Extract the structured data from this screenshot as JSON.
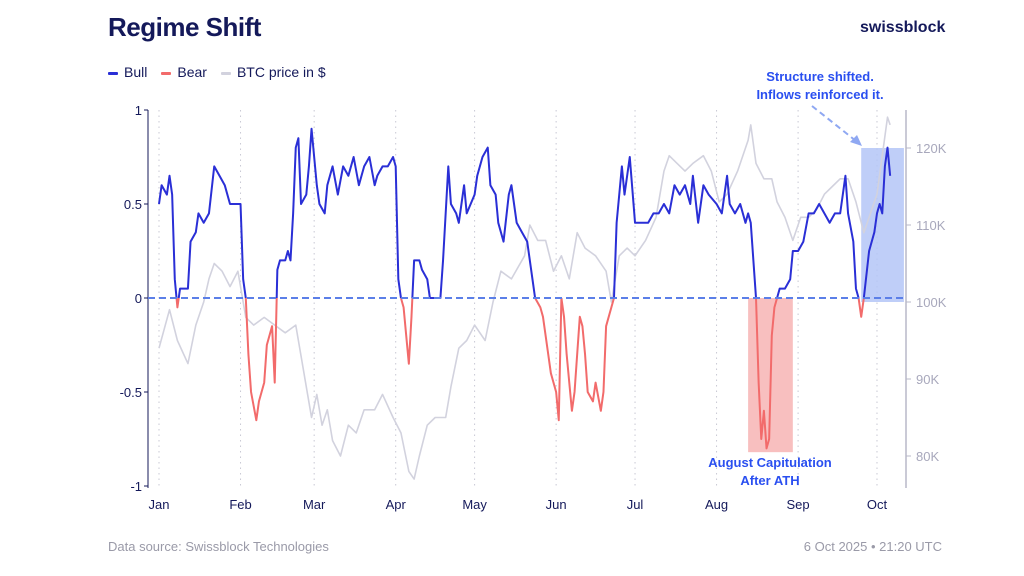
{
  "title": "Regime Shift",
  "brand": "swissblock",
  "footer": {
    "source": "Data source: Swissblock Technologies",
    "timestamp": "6 Oct 2025 • 21:20 UTC"
  },
  "chart_data": {
    "type": "line",
    "title": "Regime Shift",
    "legend": [
      {
        "name": "Bull",
        "color": "#2a2fd6"
      },
      {
        "name": "Bear",
        "color": "#f26b6b"
      },
      {
        "name": "BTC price in $",
        "color": "#d2d2de"
      }
    ],
    "legend_placement": "top-left",
    "year": 2025,
    "x_ticks": [
      {
        "label": "Jan",
        "date": "2025-01-01"
      },
      {
        "label": "Feb",
        "date": "2025-02-01"
      },
      {
        "label": "Mar",
        "date": "2025-03-01"
      },
      {
        "label": "Apr",
        "date": "2025-04-01"
      },
      {
        "label": "May",
        "date": "2025-05-01"
      },
      {
        "label": "Jun",
        "date": "2025-06-01"
      },
      {
        "label": "Jul",
        "date": "2025-07-01"
      },
      {
        "label": "Aug",
        "date": "2025-08-01"
      },
      {
        "label": "Sep",
        "date": "2025-09-01"
      },
      {
        "label": "Oct",
        "date": "2025-10-01"
      }
    ],
    "y_left": {
      "range": [
        -1,
        1
      ],
      "ticks": [
        {
          "v": 1,
          "label": "1"
        },
        {
          "v": 0.5,
          "label": "0.5"
        },
        {
          "v": 0,
          "label": "0"
        },
        {
          "v": -0.5,
          "label": "-0.5"
        },
        {
          "v": -1,
          "label": "-1"
        }
      ]
    },
    "y_right": {
      "unit": "USD",
      "ticks": [
        {
          "v": 120000,
          "label": "120K"
        },
        {
          "v": 110000,
          "label": "110K"
        },
        {
          "v": 100000,
          "label": "100K"
        },
        {
          "v": 90000,
          "label": "90K"
        },
        {
          "v": 80000,
          "label": "80K"
        }
      ]
    },
    "zero_line": {
      "style": "dashed",
      "color": "#5b7fe8"
    },
    "grid": "vertical dotted at month starts",
    "regime": [
      [
        "01-01",
        0.5
      ],
      [
        "01-02",
        0.6
      ],
      [
        "01-04",
        0.55
      ],
      [
        "01-05",
        0.65
      ],
      [
        "01-06",
        0.55
      ],
      [
        "01-07",
        0.1
      ],
      [
        "01-08",
        -0.05
      ],
      [
        "01-09",
        0.05
      ],
      [
        "01-11",
        0.05
      ],
      [
        "01-12",
        0.05
      ],
      [
        "01-13",
        0.3
      ],
      [
        "01-15",
        0.35
      ],
      [
        "01-16",
        0.45
      ],
      [
        "01-18",
        0.4
      ],
      [
        "01-20",
        0.45
      ],
      [
        "01-22",
        0.7
      ],
      [
        "01-24",
        0.65
      ],
      [
        "01-26",
        0.6
      ],
      [
        "01-28",
        0.5
      ],
      [
        "01-30",
        0.5
      ],
      [
        "02-01",
        0.5
      ],
      [
        "02-02",
        0.1
      ],
      [
        "02-03",
        0
      ],
      [
        "02-04",
        -0.3
      ],
      [
        "02-05",
        -0.5
      ],
      [
        "02-07",
        -0.65
      ],
      [
        "02-08",
        -0.55
      ],
      [
        "02-10",
        -0.45
      ],
      [
        "02-11",
        -0.25
      ],
      [
        "02-13",
        -0.15
      ],
      [
        "02-14",
        -0.45
      ],
      [
        "02-15",
        0.15
      ],
      [
        "02-16",
        0.2
      ],
      [
        "02-18",
        0.2
      ],
      [
        "02-19",
        0.25
      ],
      [
        "02-20",
        0.2
      ],
      [
        "02-21",
        0.45
      ],
      [
        "02-22",
        0.8
      ],
      [
        "02-23",
        0.85
      ],
      [
        "02-24",
        0.5
      ],
      [
        "02-26",
        0.55
      ],
      [
        "02-27",
        0.7
      ],
      [
        "02-28",
        0.9
      ],
      [
        "03-02",
        0.6
      ],
      [
        "03-03",
        0.5
      ],
      [
        "03-05",
        0.45
      ],
      [
        "03-06",
        0.6
      ],
      [
        "03-08",
        0.7
      ],
      [
        "03-10",
        0.55
      ],
      [
        "03-12",
        0.7
      ],
      [
        "03-14",
        0.65
      ],
      [
        "03-16",
        0.75
      ],
      [
        "03-18",
        0.6
      ],
      [
        "03-20",
        0.7
      ],
      [
        "03-22",
        0.75
      ],
      [
        "03-24",
        0.6
      ],
      [
        "03-25",
        0.65
      ],
      [
        "03-27",
        0.7
      ],
      [
        "03-29",
        0.7
      ],
      [
        "03-31",
        0.75
      ],
      [
        "04-01",
        0.7
      ],
      [
        "04-02",
        0.1
      ],
      [
        "04-03",
        0
      ],
      [
        "04-04",
        -0.05
      ],
      [
        "04-05",
        -0.2
      ],
      [
        "04-06",
        -0.35
      ],
      [
        "04-07",
        -0.1
      ],
      [
        "04-08",
        0.2
      ],
      [
        "04-10",
        0.2
      ],
      [
        "04-11",
        0.15
      ],
      [
        "04-13",
        0.1
      ],
      [
        "04-14",
        0
      ],
      [
        "04-16",
        0
      ],
      [
        "04-18",
        0
      ],
      [
        "04-19",
        0.2
      ],
      [
        "04-21",
        0.7
      ],
      [
        "04-22",
        0.5
      ],
      [
        "04-24",
        0.45
      ],
      [
        "04-25",
        0.4
      ],
      [
        "04-27",
        0.6
      ],
      [
        "04-28",
        0.45
      ],
      [
        "05-01",
        0.55
      ],
      [
        "05-02",
        0.65
      ],
      [
        "05-04",
        0.75
      ],
      [
        "05-06",
        0.8
      ],
      [
        "05-07",
        0.6
      ],
      [
        "05-09",
        0.55
      ],
      [
        "05-10",
        0.4
      ],
      [
        "05-12",
        0.3
      ],
      [
        "05-14",
        0.55
      ],
      [
        "05-15",
        0.6
      ],
      [
        "05-17",
        0.4
      ],
      [
        "05-19",
        0.35
      ],
      [
        "05-21",
        0.3
      ],
      [
        "05-23",
        0.1
      ],
      [
        "05-24",
        0
      ],
      [
        "05-26",
        -0.05
      ],
      [
        "05-27",
        -0.1
      ],
      [
        "05-29",
        -0.3
      ],
      [
        "05-30",
        -0.4
      ],
      [
        "06-01",
        -0.5
      ],
      [
        "06-02",
        -0.65
      ],
      [
        "06-03",
        0
      ],
      [
        "06-04",
        -0.1
      ],
      [
        "06-05",
        -0.3
      ],
      [
        "06-06",
        -0.45
      ],
      [
        "06-07",
        -0.6
      ],
      [
        "06-08",
        -0.5
      ],
      [
        "06-10",
        -0.1
      ],
      [
        "06-11",
        -0.15
      ],
      [
        "06-12",
        -0.3
      ],
      [
        "06-13",
        -0.5
      ],
      [
        "06-15",
        -0.55
      ],
      [
        "06-16",
        -0.45
      ],
      [
        "06-18",
        -0.6
      ],
      [
        "06-19",
        -0.5
      ],
      [
        "06-20",
        -0.15
      ],
      [
        "06-22",
        -0.05
      ],
      [
        "06-23",
        0
      ],
      [
        "06-24",
        0.4
      ],
      [
        "06-26",
        0.7
      ],
      [
        "06-27",
        0.55
      ],
      [
        "06-29",
        0.75
      ],
      [
        "07-01",
        0.4
      ],
      [
        "07-02",
        0.4
      ],
      [
        "07-04",
        0.4
      ],
      [
        "07-06",
        0.4
      ],
      [
        "07-08",
        0.45
      ],
      [
        "07-10",
        0.45
      ],
      [
        "07-12",
        0.5
      ],
      [
        "07-14",
        0.45
      ],
      [
        "07-16",
        0.6
      ],
      [
        "07-18",
        0.55
      ],
      [
        "07-20",
        0.6
      ],
      [
        "07-22",
        0.5
      ],
      [
        "07-23",
        0.65
      ],
      [
        "07-25",
        0.4
      ],
      [
        "07-27",
        0.6
      ],
      [
        "07-29",
        0.55
      ],
      [
        "08-01",
        0.5
      ],
      [
        "08-03",
        0.45
      ],
      [
        "08-05",
        0.65
      ],
      [
        "08-06",
        0.5
      ],
      [
        "08-08",
        0.45
      ],
      [
        "08-10",
        0.5
      ],
      [
        "08-12",
        0.4
      ],
      [
        "08-13",
        0.45
      ],
      [
        "08-14",
        0.4
      ],
      [
        "08-15",
        0.2
      ],
      [
        "08-16",
        0
      ],
      [
        "08-17",
        -0.45
      ],
      [
        "08-18",
        -0.75
      ],
      [
        "08-19",
        -0.6
      ],
      [
        "08-20",
        -0.8
      ],
      [
        "08-21",
        -0.75
      ],
      [
        "08-22",
        -0.2
      ],
      [
        "08-23",
        -0.05
      ],
      [
        "08-24",
        0
      ],
      [
        "08-25",
        0.05
      ],
      [
        "08-27",
        0.05
      ],
      [
        "08-29",
        0.1
      ],
      [
        "08-30",
        0.25
      ],
      [
        "09-01",
        0.25
      ],
      [
        "09-03",
        0.3
      ],
      [
        "09-05",
        0.45
      ],
      [
        "09-07",
        0.45
      ],
      [
        "09-09",
        0.5
      ],
      [
        "09-11",
        0.45
      ],
      [
        "09-13",
        0.4
      ],
      [
        "09-15",
        0.45
      ],
      [
        "09-17",
        0.45
      ],
      [
        "09-19",
        0.65
      ],
      [
        "09-20",
        0.45
      ],
      [
        "09-22",
        0.3
      ],
      [
        "09-23",
        0.05
      ],
      [
        "09-24",
        0
      ],
      [
        "09-25",
        -0.1
      ],
      [
        "09-26",
        0
      ],
      [
        "09-28",
        0.25
      ],
      [
        "09-30",
        0.35
      ],
      [
        "10-01",
        0.45
      ],
      [
        "10-02",
        0.5
      ],
      [
        "10-03",
        0.45
      ],
      [
        "10-04",
        0.7
      ],
      [
        "10-05",
        0.8
      ],
      [
        "10-06",
        0.65
      ]
    ],
    "btc_price": [
      [
        "01-01",
        94000
      ],
      [
        "01-05",
        99000
      ],
      [
        "01-08",
        95000
      ],
      [
        "01-12",
        92000
      ],
      [
        "01-15",
        97000
      ],
      [
        "01-18",
        100000
      ],
      [
        "01-20",
        103000
      ],
      [
        "01-22",
        105000
      ],
      [
        "01-25",
        104000
      ],
      [
        "01-28",
        102000
      ],
      [
        "01-31",
        104000
      ],
      [
        "02-03",
        98000
      ],
      [
        "02-06",
        97000
      ],
      [
        "02-10",
        98000
      ],
      [
        "02-14",
        97000
      ],
      [
        "02-18",
        96000
      ],
      [
        "02-22",
        97000
      ],
      [
        "02-25",
        91000
      ],
      [
        "02-28",
        85000
      ],
      [
        "03-02",
        88000
      ],
      [
        "03-04",
        84000
      ],
      [
        "03-06",
        86000
      ],
      [
        "03-08",
        82000
      ],
      [
        "03-11",
        80000
      ],
      [
        "03-14",
        84000
      ],
      [
        "03-17",
        83000
      ],
      [
        "03-20",
        86000
      ],
      [
        "03-24",
        86000
      ],
      [
        "03-27",
        88000
      ],
      [
        "03-31",
        85000
      ],
      [
        "04-03",
        83000
      ],
      [
        "04-06",
        78000
      ],
      [
        "04-08",
        77000
      ],
      [
        "04-10",
        80000
      ],
      [
        "04-13",
        84000
      ],
      [
        "04-16",
        85000
      ],
      [
        "04-20",
        85000
      ],
      [
        "04-22",
        89000
      ],
      [
        "04-25",
        94000
      ],
      [
        "04-28",
        95000
      ],
      [
        "05-01",
        97000
      ],
      [
        "05-05",
        95000
      ],
      [
        "05-08",
        100000
      ],
      [
        "05-11",
        104000
      ],
      [
        "05-15",
        103000
      ],
      [
        "05-20",
        106000
      ],
      [
        "05-22",
        110000
      ],
      [
        "05-25",
        108000
      ],
      [
        "05-28",
        108000
      ],
      [
        "05-31",
        104000
      ],
      [
        "06-03",
        106000
      ],
      [
        "06-06",
        103000
      ],
      [
        "06-09",
        109000
      ],
      [
        "06-12",
        107000
      ],
      [
        "06-16",
        106000
      ],
      [
        "06-20",
        104000
      ],
      [
        "06-22",
        100000
      ],
      [
        "06-25",
        106000
      ],
      [
        "06-28",
        107000
      ],
      [
        "07-01",
        106000
      ],
      [
        "07-05",
        108000
      ],
      [
        "07-09",
        111000
      ],
      [
        "07-12",
        117000
      ],
      [
        "07-14",
        119000
      ],
      [
        "07-17",
        118000
      ],
      [
        "07-20",
        117000
      ],
      [
        "07-23",
        118000
      ],
      [
        "07-27",
        119000
      ],
      [
        "07-30",
        117000
      ],
      [
        "08-02",
        113000
      ],
      [
        "08-05",
        114000
      ],
      [
        "08-09",
        117000
      ],
      [
        "08-13",
        121000
      ],
      [
        "08-14",
        123000
      ],
      [
        "08-16",
        118000
      ],
      [
        "08-19",
        116000
      ],
      [
        "08-22",
        116000
      ],
      [
        "08-24",
        113000
      ],
      [
        "08-27",
        111000
      ],
      [
        "08-30",
        108000
      ],
      [
        "09-02",
        111000
      ],
      [
        "09-05",
        111000
      ],
      [
        "09-08",
        112000
      ],
      [
        "09-11",
        114000
      ],
      [
        "09-14",
        115000
      ],
      [
        "09-17",
        116000
      ],
      [
        "09-20",
        116000
      ],
      [
        "09-23",
        113000
      ],
      [
        "09-26",
        109000
      ],
      [
        "09-29",
        112000
      ],
      [
        "10-01",
        114000
      ],
      [
        "10-03",
        119000
      ],
      [
        "10-05",
        124000
      ],
      [
        "10-06",
        123000
      ]
    ],
    "highlights": [
      {
        "name": "august-capitulation",
        "from": "08-13",
        "to": "08-30",
        "regime_range": [
          -0.82,
          0
        ],
        "color": "#f7b4b4",
        "label_lines": [
          "August Capitulation",
          "After ATH"
        ]
      },
      {
        "name": "structure-shift",
        "from": "09-25",
        "to": "10-12",
        "price_range": [
          100000,
          120000
        ],
        "color": "#b4c6f7",
        "label_lines": [
          "Structure shifted.",
          "Inflows reinforced it."
        ]
      }
    ]
  }
}
